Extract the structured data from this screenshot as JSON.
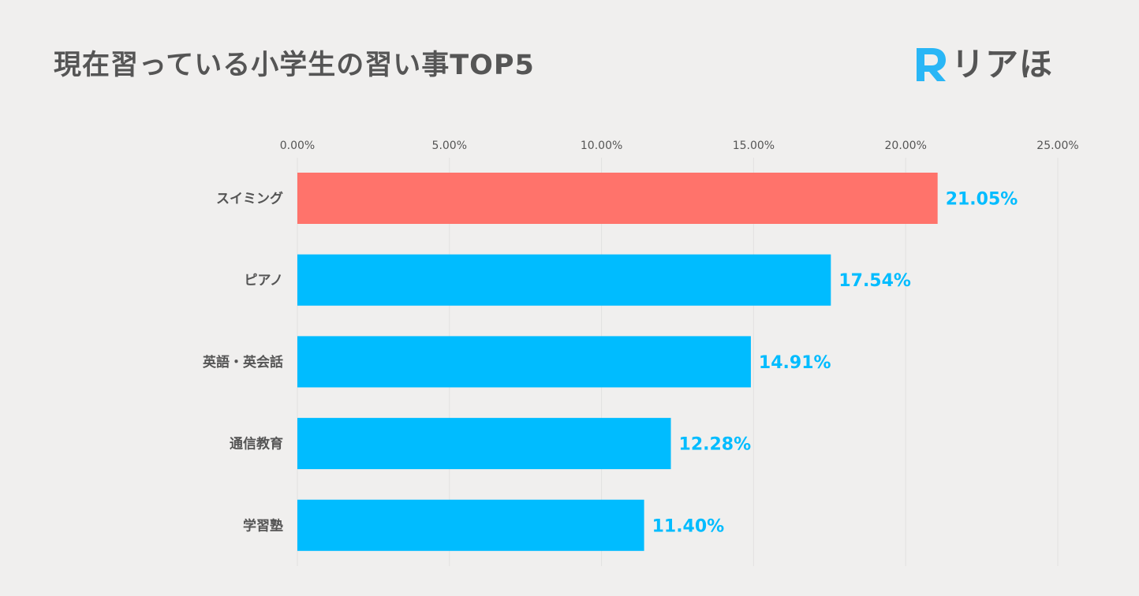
{
  "title": "現在習っている小学生の習い事TOP5",
  "logo": {
    "text": "リアほ",
    "icon": "R-letter-logo-icon",
    "color": "#29b6f6"
  },
  "colors": {
    "background": "#f0efee",
    "highlight_bar": "#ff736b",
    "bar": "#00bcff",
    "data_label": "#00bcff",
    "text": "#555555",
    "grid": "#e2e1e0"
  },
  "chart_data": {
    "type": "bar",
    "orientation": "horizontal",
    "title": "現在習っている小学生の習い事TOP5",
    "categories": [
      "スイミング",
      "ピアノ",
      "英語・英会話",
      "通信教育",
      "学習塾"
    ],
    "values": [
      21.05,
      17.54,
      14.91,
      12.28,
      11.4
    ],
    "value_labels": [
      "21.05%",
      "17.54%",
      "14.91%",
      "12.28%",
      "11.40%"
    ],
    "xlim": [
      0,
      25
    ],
    "x_ticks": [
      0,
      5,
      10,
      15,
      20,
      25
    ],
    "x_tick_labels": [
      "0.00%",
      "5.00%",
      "10.00%",
      "15.00%",
      "20.00%",
      "25.00%"
    ],
    "x_axis_position": "top",
    "highlighted_category": "スイミング",
    "grid": true,
    "legend": "none"
  }
}
